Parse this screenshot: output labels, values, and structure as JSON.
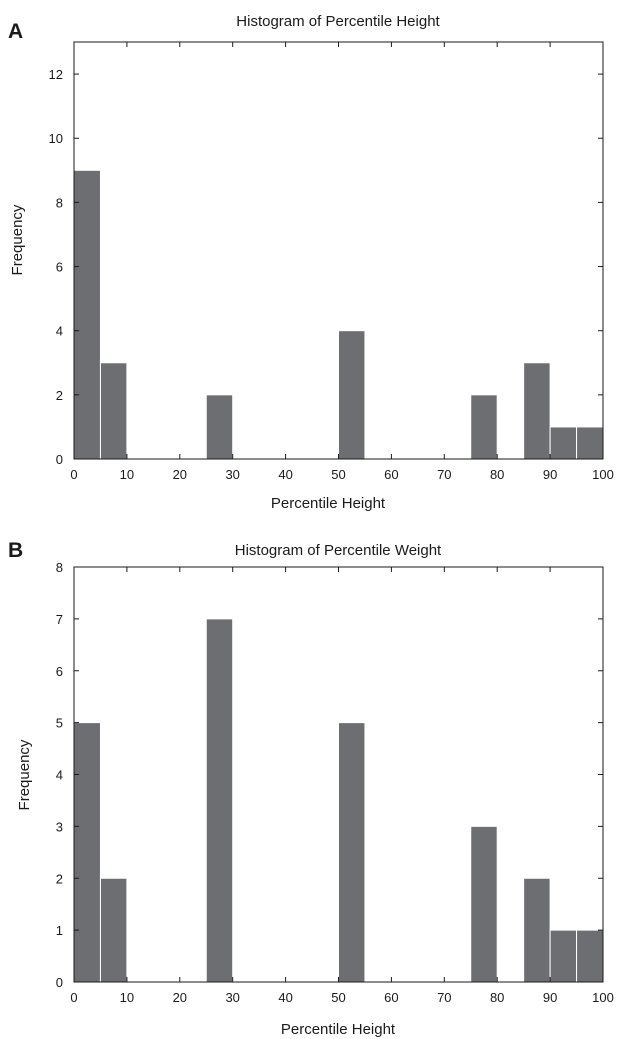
{
  "chart_data": [
    {
      "panel": "A",
      "type": "bar",
      "title": "Histogram of Percentile Height",
      "xlabel": "Percentile Height",
      "ylabel": "Frequency",
      "xlim": [
        0,
        100
      ],
      "ylim": [
        0,
        13
      ],
      "xticks": [
        0,
        10,
        20,
        30,
        40,
        50,
        60,
        70,
        80,
        90,
        100
      ],
      "yticks": [
        0,
        2,
        4,
        6,
        8,
        10,
        12
      ],
      "bin_width": 5,
      "bins": [
        {
          "x0": 0,
          "x1": 5,
          "value": 9
        },
        {
          "x0": 5,
          "x1": 10,
          "value": 3
        },
        {
          "x0": 25,
          "x1": 30,
          "value": 2
        },
        {
          "x0": 50,
          "x1": 55,
          "value": 4
        },
        {
          "x0": 75,
          "x1": 80,
          "value": 2
        },
        {
          "x0": 85,
          "x1": 90,
          "value": 3
        },
        {
          "x0": 90,
          "x1": 95,
          "value": 1
        },
        {
          "x0": 95,
          "x1": 100,
          "value": 1
        }
      ],
      "bar_color": "#6d6e71",
      "grid": false
    },
    {
      "panel": "B",
      "type": "bar",
      "title": "Histogram of Percentile Weight",
      "xlabel": "Percentile Height",
      "ylabel": "Frequency",
      "xlim": [
        0,
        100
      ],
      "ylim": [
        0,
        8
      ],
      "xticks": [
        0,
        10,
        20,
        30,
        40,
        50,
        60,
        70,
        80,
        90,
        100
      ],
      "yticks": [
        0,
        1,
        2,
        3,
        4,
        5,
        6,
        7,
        8
      ],
      "bin_width": 5,
      "bins": [
        {
          "x0": 0,
          "x1": 5,
          "value": 5
        },
        {
          "x0": 5,
          "x1": 10,
          "value": 2
        },
        {
          "x0": 25,
          "x1": 30,
          "value": 7
        },
        {
          "x0": 50,
          "x1": 55,
          "value": 5
        },
        {
          "x0": 75,
          "x1": 80,
          "value": 3
        },
        {
          "x0": 85,
          "x1": 90,
          "value": 2
        },
        {
          "x0": 90,
          "x1": 95,
          "value": 1
        },
        {
          "x0": 95,
          "x1": 100,
          "value": 1
        }
      ],
      "bar_color": "#6d6e71",
      "grid": false
    }
  ]
}
